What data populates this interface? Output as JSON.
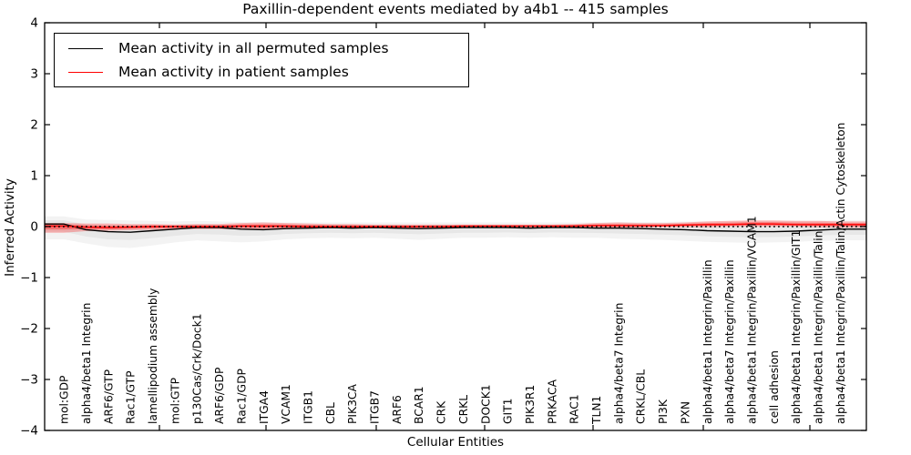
{
  "figure": {
    "title": "Paxillin-dependent events mediated by a4b1 -- 415 samples",
    "xlabel": "Cellular Entities",
    "ylabel": "Inferred Activity"
  },
  "legend": {
    "entries": [
      {
        "label": "Mean activity in all permuted samples",
        "color": "#000000"
      },
      {
        "label": "Mean activity in patient samples",
        "color": "#ff0000"
      }
    ]
  },
  "chart_data": {
    "type": "line",
    "title": "Paxillin-dependent events mediated by a4b1 -- 415 samples",
    "xlabel": "Cellular Entities",
    "ylabel": "Inferred Activity",
    "ylim": [
      -4,
      4
    ],
    "yticks": [
      4,
      3,
      2,
      1,
      0,
      -1,
      -2,
      -3,
      -4
    ],
    "grid": false,
    "legend_position": "upper left",
    "reference_line_y": 0,
    "categories": [
      "mol:GDP",
      "alpha4/beta1 Integrin",
      "ARF6/GTP",
      "Rac1/GTP",
      "lamellipodium assembly",
      "mol:GTP",
      "p130Cas/Crk/Dock1",
      "ARF6/GDP",
      "Rac1/GDP",
      "ITGA4",
      "VCAM1",
      "ITGB1",
      "CBL",
      "PIK3CA",
      "ITGB7",
      "ARF6",
      "BCAR1",
      "CRK",
      "CRKL",
      "DOCK1",
      "GIT1",
      "PIK3R1",
      "PRKACA",
      "RAC1",
      "TLN1",
      "alpha4/beta7 Integrin",
      "CRKL/CBL",
      "PI3K",
      "PXN",
      "alpha4/beta1 Integrin/Paxillin",
      "alpha4/beta7 Integrin/Paxillin",
      "alpha4/beta1 Integrin/Paxillin/VCAM1",
      "cell adhesion",
      "alpha4/beta1 Integrin/Paxillin/GIT1",
      "alpha4/beta1 Integrin/Paxillin/Talin",
      "alpha4/beta1 Integrin/Paxillin/Talin/Actin Cytoskeleton"
    ],
    "series": [
      {
        "name": "Mean activity in all permuted samples",
        "color": "#000000",
        "line_style": "solid",
        "values": [
          0.05,
          -0.06,
          -0.1,
          -0.11,
          -0.08,
          -0.05,
          -0.02,
          -0.02,
          -0.05,
          -0.06,
          -0.04,
          -0.03,
          -0.02,
          -0.03,
          -0.02,
          -0.03,
          -0.04,
          -0.03,
          -0.02,
          -0.02,
          -0.02,
          -0.03,
          -0.02,
          -0.02,
          -0.03,
          -0.03,
          -0.04,
          -0.05,
          -0.06,
          -0.08,
          -0.09,
          -0.1,
          -0.1,
          -0.09,
          -0.07,
          -0.05
        ],
        "band_top": [
          0.2,
          0.14,
          0.13,
          0.12,
          0.11,
          0.1,
          0.11,
          0.1,
          0.09,
          0.09,
          0.08,
          0.08,
          0.08,
          0.08,
          0.08,
          0.08,
          0.08,
          0.08,
          0.08,
          0.08,
          0.08,
          0.08,
          0.08,
          0.08,
          0.08,
          0.09,
          0.09,
          0.09,
          0.1,
          0.1,
          0.1,
          0.11,
          0.11,
          0.11,
          0.11,
          0.12
        ],
        "band_bottom": [
          -0.25,
          -0.33,
          -0.4,
          -0.42,
          -0.37,
          -0.31,
          -0.27,
          -0.29,
          -0.31,
          -0.29,
          -0.25,
          -0.23,
          -0.22,
          -0.23,
          -0.22,
          -0.24,
          -0.26,
          -0.24,
          -0.22,
          -0.22,
          -0.21,
          -0.22,
          -0.21,
          -0.22,
          -0.22,
          -0.24,
          -0.25,
          -0.26,
          -0.28,
          -0.3,
          -0.31,
          -0.32,
          -0.31,
          -0.3,
          -0.28,
          -0.27
        ],
        "band_color": "#787878",
        "band_alpha": 0.17
      },
      {
        "name": "Mean activity in patient samples",
        "color": "#ff0000",
        "line_style": "solid",
        "values": [
          0.01,
          -0.01,
          -0.02,
          -0.01,
          0.0,
          0.0,
          0.0,
          0.0,
          0.01,
          0.01,
          0.01,
          0.0,
          0.0,
          0.0,
          0.0,
          0.0,
          0.0,
          0.0,
          0.01,
          0.01,
          0.01,
          0.01,
          0.01,
          0.01,
          0.02,
          0.02,
          0.02,
          0.02,
          0.03,
          0.04,
          0.04,
          0.05,
          0.05,
          0.04,
          0.04,
          0.04
        ],
        "band_top": [
          0.07,
          0.06,
          0.06,
          0.05,
          0.05,
          0.04,
          0.05,
          0.05,
          0.07,
          0.08,
          0.07,
          0.06,
          0.05,
          0.05,
          0.04,
          0.04,
          0.04,
          0.04,
          0.04,
          0.04,
          0.04,
          0.04,
          0.04,
          0.05,
          0.07,
          0.08,
          0.07,
          0.07,
          0.08,
          0.1,
          0.11,
          0.12,
          0.12,
          0.11,
          0.11,
          0.1
        ],
        "band_bottom": [
          -0.12,
          -0.09,
          -0.08,
          -0.07,
          -0.06,
          -0.05,
          -0.05,
          -0.05,
          -0.05,
          -0.06,
          -0.05,
          -0.04,
          -0.03,
          -0.03,
          -0.03,
          -0.03,
          -0.03,
          -0.03,
          -0.02,
          -0.02,
          -0.02,
          -0.02,
          -0.02,
          -0.02,
          -0.02,
          -0.02,
          -0.02,
          -0.01,
          -0.01,
          -0.01,
          0.0,
          0.0,
          0.0,
          0.0,
          -0.01,
          -0.02
        ],
        "band_color": "#ff0000",
        "band_alpha": 0.27
      }
    ],
    "reference_line_color": "#000000",
    "reference_line_style": "dotted"
  }
}
